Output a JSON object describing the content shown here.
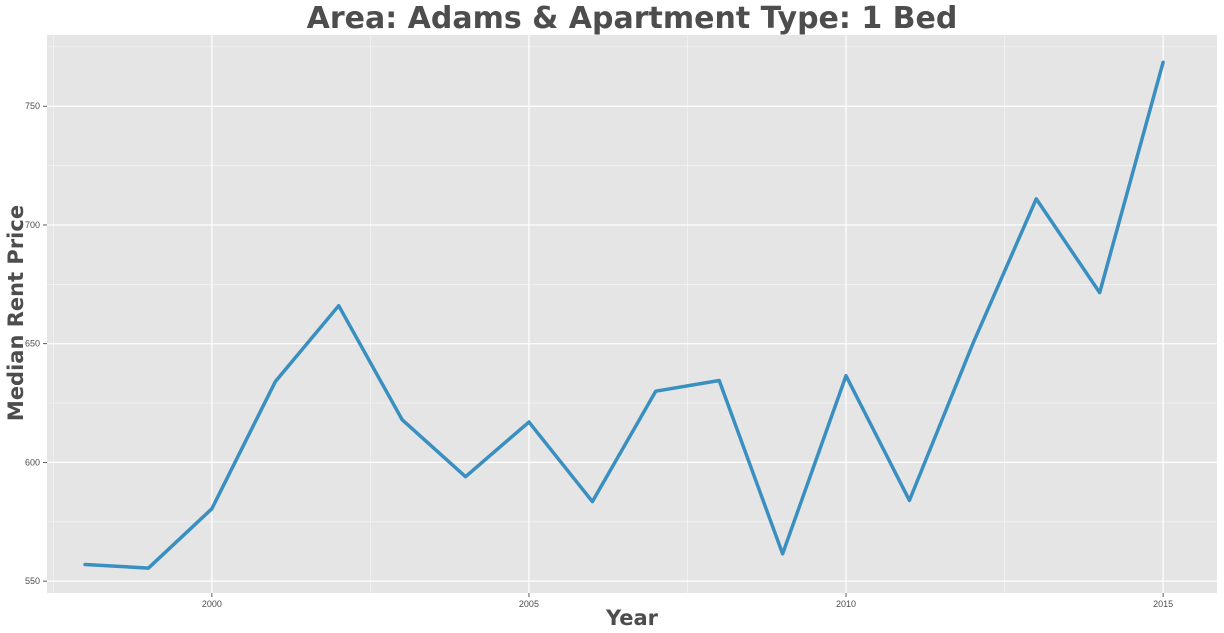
{
  "chart_data": {
    "type": "line",
    "title": "Area: Adams & Apartment Type: 1 Bed",
    "xlabel": "Year",
    "ylabel": "Median Rent Price",
    "x": [
      1998,
      1999,
      2000,
      2001,
      2002,
      2003,
      2004,
      2005,
      2006,
      2007,
      2008,
      2009,
      2010,
      2011,
      2012,
      2013,
      2014,
      2015
    ],
    "series": [
      {
        "values": [
          557,
          555.5,
          580.5,
          634,
          666,
          618,
          594,
          617,
          583.5,
          630,
          634.5,
          561.5,
          636.5,
          584,
          650,
          711,
          671.5,
          768.5
        ]
      }
    ],
    "xlim": [
      1997.4,
      2015.85
    ],
    "ylim": [
      545,
      780
    ],
    "xticks": [
      2000,
      2005,
      2010,
      2015
    ],
    "yticks": [
      550,
      600,
      650,
      700,
      750
    ],
    "grid": true,
    "colors": {
      "line": "#3a8fc1",
      "panel": "#e5e5e5",
      "grid": "#ffffff",
      "text": "#4d4d4d"
    }
  }
}
